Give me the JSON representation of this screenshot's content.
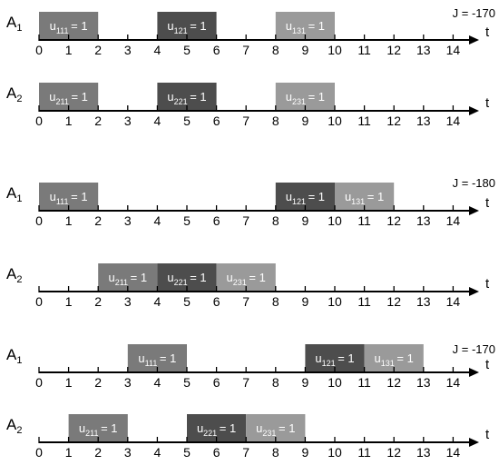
{
  "colors": {
    "shade_1": "#7a7a7a",
    "shade_2": "#4d4d4d",
    "shade_3": "#9a9a9a",
    "axis": "#000000",
    "task_text": "#ffffff"
  },
  "axis": {
    "variable": "t",
    "ticks": [
      "0",
      "1",
      "2",
      "3",
      "4",
      "5",
      "6",
      "7",
      "8",
      "9",
      "10",
      "11",
      "12",
      "13",
      "14"
    ]
  },
  "panels": [
    {
      "objective": "J = -170",
      "rows": [
        {
          "agent": "A",
          "agent_sub": "1",
          "tasks": [
            {
              "u": "u",
              "sub": "111",
              "value": "= 1",
              "start": 0,
              "end": 2,
              "shade": 1
            },
            {
              "u": "u",
              "sub": "121",
              "value": "= 1",
              "start": 4,
              "end": 6,
              "shade": 2
            },
            {
              "u": "u",
              "sub": "131",
              "value": "= 1",
              "start": 8,
              "end": 10,
              "shade": 3
            }
          ]
        },
        {
          "agent": "A",
          "agent_sub": "2",
          "tasks": [
            {
              "u": "u",
              "sub": "211",
              "value": "= 1",
              "start": 0,
              "end": 2,
              "shade": 1
            },
            {
              "u": "u",
              "sub": "221",
              "value": "= 1",
              "start": 4,
              "end": 6,
              "shade": 2
            },
            {
              "u": "u",
              "sub": "231",
              "value": "= 1",
              "start": 8,
              "end": 10,
              "shade": 3
            }
          ]
        }
      ]
    },
    {
      "objective": "J = -180",
      "rows": [
        {
          "agent": "A",
          "agent_sub": "1",
          "tasks": [
            {
              "u": "u",
              "sub": "111",
              "value": "= 1",
              "start": 0,
              "end": 2,
              "shade": 1
            },
            {
              "u": "u",
              "sub": "121",
              "value": "= 1",
              "start": 8,
              "end": 10,
              "shade": 2
            },
            {
              "u": "u",
              "sub": "131",
              "value": "= 1",
              "start": 10,
              "end": 12,
              "shade": 3
            }
          ]
        },
        {
          "agent": "A",
          "agent_sub": "2",
          "tasks": [
            {
              "u": "u",
              "sub": "211",
              "value": "= 1",
              "start": 2,
              "end": 4,
              "shade": 1
            },
            {
              "u": "u",
              "sub": "221",
              "value": "= 1",
              "start": 4,
              "end": 6,
              "shade": 2
            },
            {
              "u": "u",
              "sub": "231",
              "value": "= 1",
              "start": 6,
              "end": 8,
              "shade": 3
            }
          ]
        }
      ]
    },
    {
      "objective": "J = -170",
      "rows": [
        {
          "agent": "A",
          "agent_sub": "1",
          "tasks": [
            {
              "u": "u",
              "sub": "111",
              "value": "= 1",
              "start": 3,
              "end": 5,
              "shade": 1
            },
            {
              "u": "u",
              "sub": "121",
              "value": "= 1",
              "start": 9,
              "end": 11,
              "shade": 2
            },
            {
              "u": "u",
              "sub": "131",
              "value": "= 1",
              "start": 11,
              "end": 13,
              "shade": 3
            }
          ]
        },
        {
          "agent": "A",
          "agent_sub": "2",
          "tasks": [
            {
              "u": "u",
              "sub": "211",
              "value": "= 1",
              "start": 1,
              "end": 3,
              "shade": 1
            },
            {
              "u": "u",
              "sub": "221",
              "value": "= 1",
              "start": 5,
              "end": 7,
              "shade": 2
            },
            {
              "u": "u",
              "sub": "231",
              "value": "= 1",
              "start": 7,
              "end": 9,
              "shade": 3
            }
          ]
        }
      ]
    }
  ]
}
